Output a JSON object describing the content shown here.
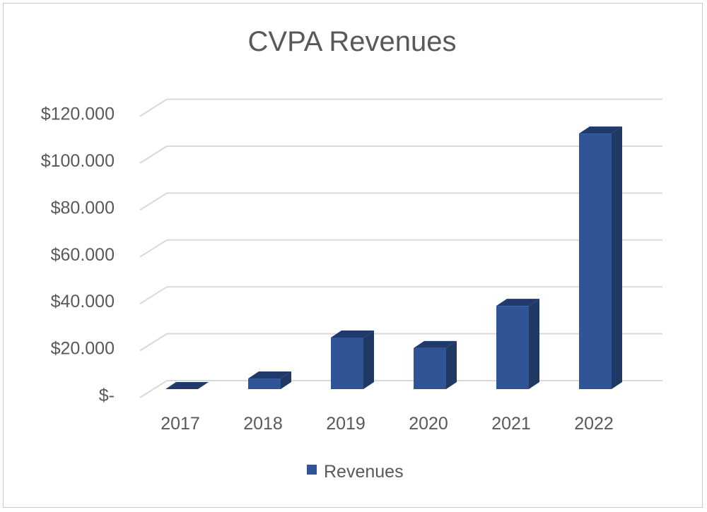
{
  "chart_data": {
    "type": "bar",
    "title": "CVPA Revenues",
    "categories": [
      "2017",
      "2018",
      "2019",
      "2020",
      "2021",
      "2022"
    ],
    "series": [
      {
        "name": "Revenues",
        "values": [
          0,
          4500,
          22000,
          17500,
          35500,
          109000
        ]
      }
    ],
    "y_tick_labels": [
      "$-",
      "$20.000",
      "$40.000",
      "$60.000",
      "$80.000",
      "$100.000",
      "$120.000"
    ],
    "y_ticks": [
      0,
      20000,
      40000,
      60000,
      80000,
      100000,
      120000
    ],
    "ylim": [
      0,
      120000
    ],
    "xlabel": "",
    "ylabel": "",
    "grid": true,
    "legend_position": "bottom",
    "colors": {
      "bar_front": "#2f5597",
      "bar_side": "#1f3864",
      "bar_top": "#203a6b",
      "grid": "#d9d9d9",
      "text": "#595959"
    }
  }
}
